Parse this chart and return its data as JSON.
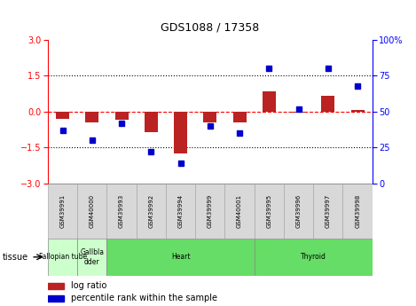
{
  "title": "GDS1088 / 17358",
  "samples": [
    "GSM39991",
    "GSM40000",
    "GSM39993",
    "GSM39992",
    "GSM39994",
    "GSM39999",
    "GSM40001",
    "GSM39995",
    "GSM39996",
    "GSM39997",
    "GSM39998"
  ],
  "log_ratio": [
    -0.3,
    -0.45,
    -0.35,
    -0.85,
    -1.75,
    -0.45,
    -0.45,
    0.85,
    -0.05,
    0.65,
    0.07
  ],
  "percentile_rank": [
    37,
    30,
    42,
    22,
    14,
    40,
    35,
    80,
    52,
    80,
    68
  ],
  "tissue_groups": [
    {
      "label": "Fallopian tube",
      "start": 0,
      "end": 1,
      "color": "#ccffcc"
    },
    {
      "label": "Gallbla\ndder",
      "start": 1,
      "end": 2,
      "color": "#ccffcc"
    },
    {
      "label": "Heart",
      "start": 2,
      "end": 7,
      "color": "#66dd66"
    },
    {
      "label": "Thyroid",
      "start": 7,
      "end": 11,
      "color": "#66dd66"
    }
  ],
  "bar_color_red": "#bb2222",
  "bar_color_blue": "#0000cc",
  "ylim_left": [
    -3,
    3
  ],
  "ylim_right": [
    0,
    100
  ],
  "yticks_left": [
    -3,
    -1.5,
    0,
    1.5,
    3
  ],
  "yticks_right": [
    0,
    25,
    50,
    75,
    100
  ],
  "hline_zero": 0,
  "hlines_dotted": [
    1.5,
    -1.5
  ],
  "bg_color": "#ffffff",
  "sample_box_color": "#d8d8d8",
  "legend_red_label": "log ratio",
  "legend_blue_label": "percentile rank within the sample",
  "tissue_label": "tissue"
}
